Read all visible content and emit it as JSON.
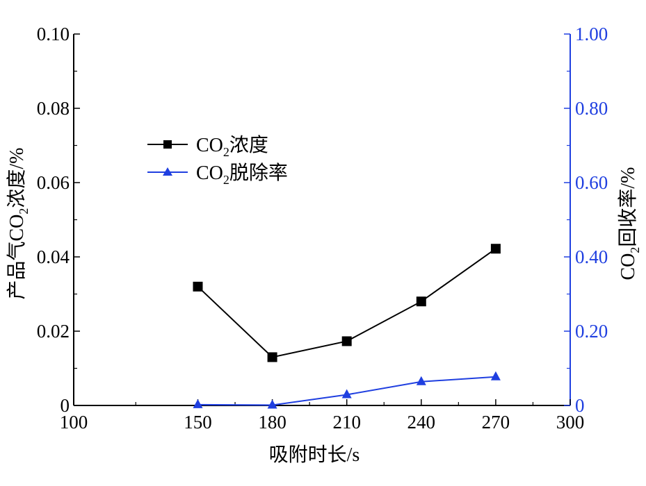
{
  "chart_data": {
    "type": "line",
    "xlabel": "吸附时长/s",
    "ylabel_left": {
      "prefix": "产品气CO",
      "sub": "2",
      "suffix": "浓度/%"
    },
    "ylabel_right": {
      "prefix": "CO",
      "sub": "2",
      "suffix": "回收率/%"
    },
    "xlim": [
      100,
      300
    ],
    "xticks": [
      100,
      150,
      180,
      210,
      240,
      270,
      300
    ],
    "ylim_left": [
      0,
      0.1
    ],
    "yticks_left": [
      "0",
      "0.02",
      "0.04",
      "0.06",
      "0.08",
      "0.10"
    ],
    "ylim_right": [
      0,
      1.0
    ],
    "yticks_right": [
      "0",
      "0.20",
      "0.40",
      "0.60",
      "0.80",
      "1.00"
    ],
    "grid": false,
    "legend_position": "upper-left",
    "colors": {
      "left_axis": "#000000",
      "right_axis": "#1f3fe0"
    },
    "series": [
      {
        "name": {
          "prefix": "CO",
          "sub": "2",
          "suffix": "浓度"
        },
        "axis": "left",
        "marker": "square",
        "color": "#000000",
        "x": [
          150,
          180,
          210,
          240,
          270
        ],
        "y": [
          0.032,
          0.013,
          0.0173,
          0.028,
          0.0422
        ]
      },
      {
        "name": {
          "prefix": "CO",
          "sub": "2",
          "suffix": "脱除率"
        },
        "axis": "left",
        "marker": "triangle",
        "color": "#1f3fe0",
        "x": [
          150,
          180,
          210,
          240,
          270
        ],
        "y": [
          0.0002,
          0.0001,
          0.0029,
          0.0064,
          0.0077
        ]
      }
    ]
  }
}
